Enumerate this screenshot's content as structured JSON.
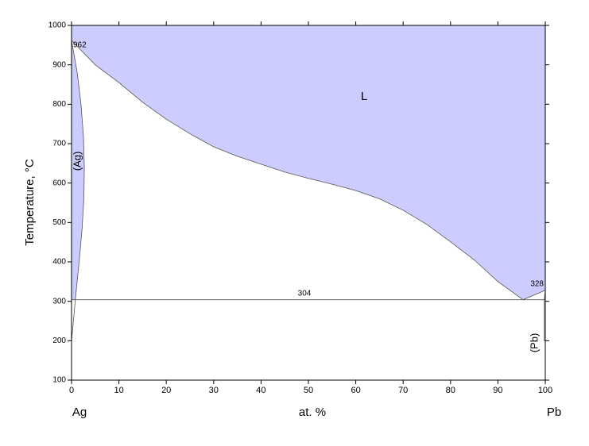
{
  "chart_data": {
    "type": "phase",
    "xlabel": "at. %",
    "ylabel": "Temperature, °C",
    "components": [
      "Ag",
      "Pb"
    ],
    "xlim": [
      0,
      100
    ],
    "ylim": [
      100,
      1000
    ],
    "xticks": [
      0,
      10,
      20,
      30,
      40,
      50,
      60,
      70,
      80,
      90,
      100
    ],
    "yticks": [
      100,
      200,
      300,
      400,
      500,
      600,
      700,
      800,
      900,
      1000
    ],
    "regions": [
      {
        "label": "L",
        "color": "#ccccff",
        "x": [
          0,
          5,
          10,
          15,
          20,
          25,
          30,
          35,
          40,
          45,
          50,
          55,
          60,
          65,
          70,
          75,
          80,
          85,
          90,
          95.3,
          100
        ],
        "y": [
          962,
          900,
          855,
          805,
          762,
          725,
          692,
          668,
          648,
          628,
          612,
          597,
          581,
          560,
          531,
          495,
          451,
          405,
          350,
          304,
          328
        ]
      },
      {
        "label": "(Ag)",
        "color": "#ccccff",
        "x": [
          0,
          1.2,
          2.0,
          2.5,
          2.7,
          2.6,
          2.2,
          1.6,
          0.8,
          0
        ],
        "y": [
          962,
          880,
          800,
          720,
          640,
          560,
          480,
          400,
          304,
          304
        ]
      },
      {
        "label": "(Pb)",
        "x": [
          100,
          99.8,
          99.8,
          100
        ],
        "y": [
          328,
          304,
          200,
          200
        ]
      }
    ],
    "lines": [
      {
        "x": [
          0.8,
          100
        ],
        "y": [
          304,
          304
        ]
      },
      {
        "x": [
          0.8,
          0.4,
          0
        ],
        "y": [
          304,
          250,
          200
        ]
      }
    ],
    "invariants": [
      {
        "value": 962,
        "x": 0
      },
      {
        "value": 328,
        "x": 100
      },
      {
        "value": 304,
        "x": 95.3
      }
    ]
  }
}
